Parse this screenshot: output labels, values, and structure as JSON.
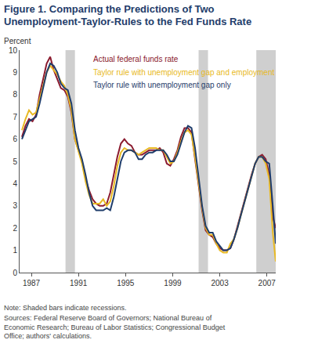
{
  "chart_data": {
    "type": "line",
    "title": "Figure 1. Comparing the Predictions of Two\nUnemployment-Taylor-Rules to the Fed Funds Rate",
    "ylabel": "Percent",
    "note": "Note: Shaded bars indicate recessions.",
    "sources": "Sources: Federal Reserve Board of Governors; National Bureau of\nEconomic Research; Bureau of Labor Statistics; Congressional Budget\nOffice; authors' calculations.",
    "x": [
      1986.2,
      1986.5,
      1986.8,
      1987.1,
      1987.4,
      1987.7,
      1988.0,
      1988.3,
      1988.6,
      1988.9,
      1989.2,
      1989.5,
      1989.8,
      1990.1,
      1990.4,
      1990.7,
      1991.0,
      1991.3,
      1991.6,
      1991.9,
      1992.2,
      1992.5,
      1992.8,
      1993.1,
      1993.4,
      1993.7,
      1994.0,
      1994.3,
      1994.6,
      1994.9,
      1995.2,
      1995.5,
      1995.8,
      1996.1,
      1996.4,
      1996.7,
      1997.0,
      1997.3,
      1997.6,
      1997.9,
      1998.2,
      1998.5,
      1998.8,
      1999.1,
      1999.4,
      1999.7,
      2000.0,
      2000.3,
      2000.6,
      2000.9,
      2001.2,
      2001.5,
      2001.8,
      2002.1,
      2002.4,
      2002.7,
      2003.0,
      2003.3,
      2003.6,
      2003.9,
      2004.2,
      2004.5,
      2004.8,
      2005.1,
      2005.4,
      2005.7,
      2006.0,
      2006.3,
      2006.6,
      2006.9,
      2007.2,
      2007.5,
      2007.75
    ],
    "series": [
      {
        "name": "Actual federal funds rate",
        "color": "#8b1a2e",
        "values": [
          6.1,
          6.6,
          6.9,
          6.8,
          7.1,
          8.0,
          8.7,
          9.4,
          9.7,
          9.1,
          8.7,
          8.3,
          8.2,
          7.9,
          7.2,
          6.0,
          5.5,
          5.0,
          4.2,
          3.7,
          3.3,
          3.1,
          3.0,
          3.0,
          3.1,
          3.6,
          4.4,
          5.2,
          5.8,
          6.0,
          5.8,
          5.7,
          5.4,
          5.3,
          5.3,
          5.4,
          5.5,
          5.5,
          5.5,
          5.6,
          5.4,
          4.9,
          4.8,
          5.1,
          5.5,
          6.1,
          6.5,
          6.5,
          6.3,
          5.1,
          3.9,
          2.8,
          1.9,
          1.7,
          1.6,
          1.3,
          1.1,
          1.0,
          1.0,
          1.1,
          1.5,
          2.1,
          2.7,
          3.2,
          3.8,
          4.4,
          4.9,
          5.2,
          5.3,
          5.1,
          4.4,
          2.5,
          2.0
        ]
      },
      {
        "name": "Taylor rule with unemployment gap and employment",
        "color": "#e8b923",
        "values": [
          6.4,
          6.9,
          7.3,
          7.1,
          7.2,
          7.8,
          8.5,
          9.0,
          9.3,
          9.1,
          8.9,
          8.6,
          8.4,
          8.0,
          7.3,
          6.0,
          5.4,
          4.9,
          4.1,
          3.5,
          3.1,
          3.1,
          3.1,
          3.3,
          3.0,
          3.2,
          3.9,
          4.8,
          5.4,
          5.6,
          5.5,
          5.5,
          5.4,
          5.3,
          5.4,
          5.5,
          5.6,
          5.6,
          5.6,
          5.5,
          5.5,
          5.2,
          4.9,
          5.0,
          5.4,
          5.9,
          6.3,
          6.4,
          6.2,
          5.2,
          4.0,
          2.9,
          2.0,
          1.7,
          1.7,
          1.3,
          1.0,
          0.9,
          0.9,
          1.3,
          1.5,
          2.0,
          2.6,
          3.2,
          3.8,
          4.4,
          4.9,
          5.2,
          5.2,
          4.9,
          4.2,
          1.8,
          0.5
        ]
      },
      {
        "name": "Taylor rule with unemployment gap only",
        "color": "#1f3d6b",
        "values": [
          6.0,
          6.4,
          6.8,
          6.9,
          7.0,
          7.6,
          8.3,
          9.0,
          9.4,
          9.3,
          9.0,
          8.5,
          8.3,
          8.2,
          7.6,
          6.4,
          5.6,
          5.1,
          4.4,
          3.6,
          3.0,
          2.8,
          2.8,
          2.8,
          2.9,
          2.8,
          3.4,
          4.2,
          5.0,
          5.4,
          5.5,
          5.5,
          5.4,
          5.1,
          5.1,
          5.3,
          5.4,
          5.4,
          5.5,
          5.5,
          5.5,
          5.3,
          5.0,
          5.0,
          5.3,
          5.8,
          6.3,
          6.6,
          6.5,
          5.6,
          4.3,
          3.0,
          2.1,
          1.8,
          1.8,
          1.4,
          1.2,
          1.0,
          1.0,
          1.1,
          1.5,
          2.0,
          2.6,
          3.2,
          3.8,
          4.4,
          4.9,
          5.2,
          5.2,
          5.0,
          4.9,
          3.0,
          1.3
        ]
      }
    ],
    "recessions": [
      [
        1989.9,
        1990.7
      ],
      [
        2001.2,
        2002.0
      ],
      [
        2006.1,
        2007.75
      ]
    ],
    "xlim": [
      1986,
      2007.75
    ],
    "xticks": [
      1987,
      1991,
      1995,
      1999,
      2003,
      2007
    ],
    "ylim": [
      0,
      10
    ],
    "yticks": [
      0,
      1,
      2,
      3,
      4,
      5,
      6,
      7,
      8,
      9,
      10
    ],
    "grid": false,
    "legend": "top"
  }
}
